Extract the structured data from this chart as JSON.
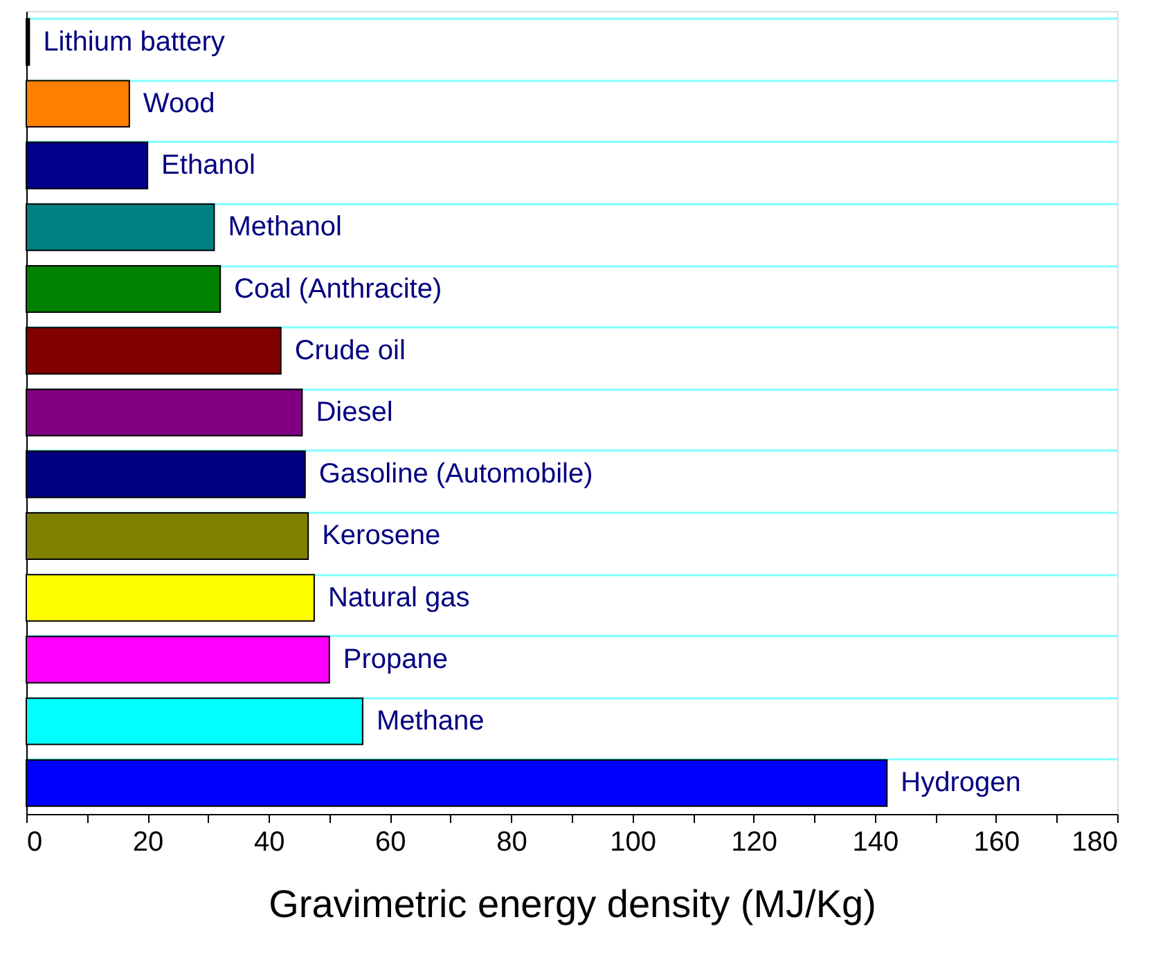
{
  "chart_data": {
    "type": "bar",
    "orientation": "horizontal",
    "xlabel": "Gravimetric energy density (MJ/Kg)",
    "categories": [
      "Lithium battery",
      "Wood",
      "Ethanol",
      "Methanol",
      "Coal (Anthracite)",
      "Crude oil",
      "Diesel",
      "Gasoline (Automobile)",
      "Kerosene",
      "Natural gas",
      "Propane",
      "Methane",
      "Hydrogen"
    ],
    "values": [
      0.5,
      17,
      20,
      31,
      32,
      42,
      45.5,
      46,
      46.5,
      47.5,
      50,
      55.5,
      142
    ],
    "colors": [
      "#000000",
      "#ff8000",
      "#00008b",
      "#008080",
      "#008000",
      "#800000",
      "#800080",
      "#000080",
      "#808000",
      "#ffff00",
      "#ff00ff",
      "#00ffff",
      "#0000ff"
    ],
    "xlim": [
      0,
      180
    ],
    "xticks": [
      0,
      {
        "value": 10,
        "label": null
      },
      20,
      {
        "value": 30,
        "label": null
      },
      40,
      {
        "value": 50,
        "label": null
      },
      60,
      {
        "value": 70,
        "label": null
      },
      80,
      {
        "value": 90,
        "label": null
      },
      100,
      {
        "value": 110,
        "label": null
      },
      120,
      {
        "value": 130,
        "label": null
      },
      140,
      {
        "value": 150,
        "label": null
      },
      160,
      {
        "value": 170,
        "label": null
      },
      180
    ],
    "tick_labels": "x",
    "grid": "y"
  }
}
